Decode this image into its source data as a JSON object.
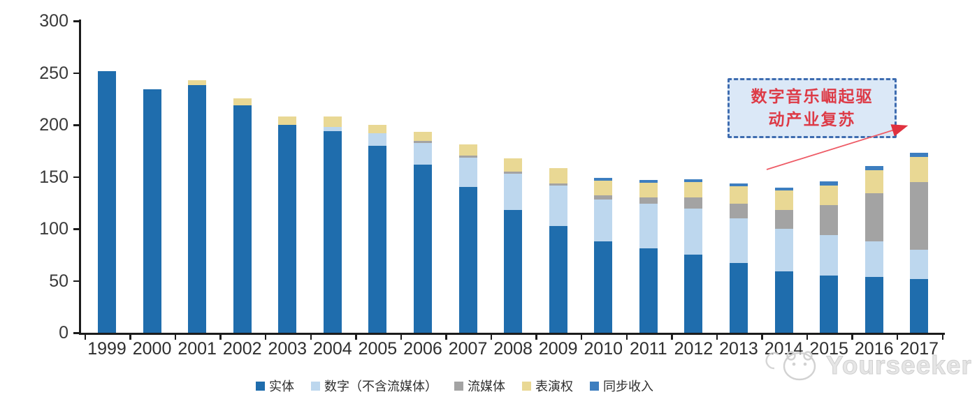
{
  "chart_data": {
    "type": "bar",
    "stacked": true,
    "title": "",
    "xlabel": "",
    "ylabel": "",
    "ylim": [
      0,
      300
    ],
    "yticks": [
      0,
      50,
      100,
      150,
      200,
      250,
      300
    ],
    "grid": false,
    "legend_position": "bottom",
    "categories": [
      "1999",
      "2000",
      "2001",
      "2002",
      "2003",
      "2004",
      "2005",
      "2006",
      "2007",
      "2008",
      "2009",
      "2010",
      "2011",
      "2012",
      "2013",
      "2014",
      "2015",
      "2016",
      "2017"
    ],
    "series": [
      {
        "name": "实体",
        "color": "#1f6dad",
        "values": [
          252,
          234,
          238,
          219,
          200,
          194,
          180,
          162,
          140,
          118,
          103,
          88,
          81,
          75,
          67,
          59,
          55,
          54,
          52
        ]
      },
      {
        "name": "数字（不含流媒体）",
        "color": "#bdd7ee",
        "values": [
          0,
          0,
          0,
          0,
          0,
          4,
          12,
          21,
          28,
          35,
          39,
          40,
          43,
          44,
          43,
          41,
          39,
          34,
          28
        ]
      },
      {
        "name": "流媒体",
        "color": "#a3a3a3",
        "values": [
          0,
          0,
          0,
          0,
          0,
          0,
          0,
          2,
          2,
          2,
          2,
          4,
          6,
          11,
          14,
          18,
          29,
          46,
          65
        ]
      },
      {
        "name": "表演权",
        "color": "#e9d894",
        "values": [
          0,
          0,
          5,
          7,
          8,
          10,
          8,
          9,
          11,
          13,
          15,
          14,
          14,
          15,
          17,
          19,
          19,
          22,
          24
        ]
      },
      {
        "name": "同步收入",
        "color": "#3d7ebf",
        "values": [
          0,
          0,
          0,
          0,
          0,
          0,
          0,
          0,
          0,
          0,
          0,
          3,
          3,
          3,
          3,
          3,
          4,
          4,
          4
        ]
      }
    ]
  },
  "annotation": {
    "line1": "数字音乐崛起驱",
    "line2": "动产业复苏",
    "text_color": "#dd3b47",
    "box_fill": "#dbe8f7",
    "box_border": "#3e6cb0",
    "arrow_color": "#ee5b66"
  },
  "watermark": {
    "text": "Yourseeker",
    "color": "#d8d8d8"
  },
  "axis": {
    "line_color": "#1c1c1c",
    "label_color": "#3a3a3a"
  }
}
